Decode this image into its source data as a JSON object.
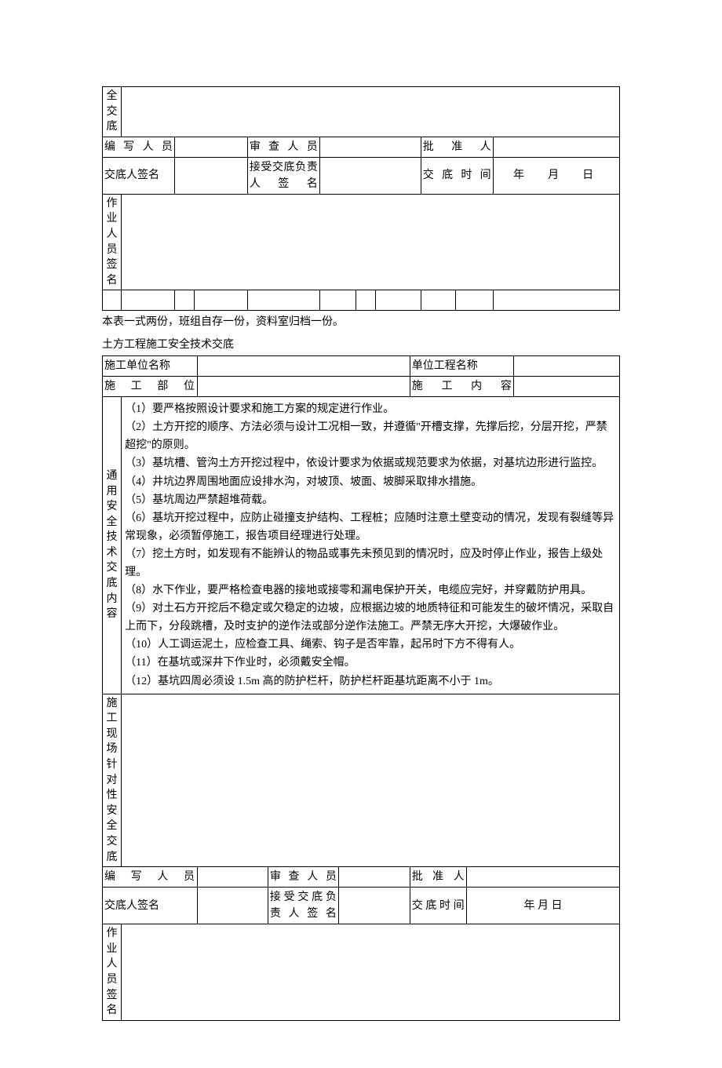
{
  "table1": {
    "row_label_1": "全交底",
    "r2": {
      "c1": "编写人员",
      "c2": "审查人员",
      "c3": "批准人"
    },
    "r3": {
      "c1": "交底人签名",
      "c2": "接受交底负责人签名",
      "c3": "交底时间",
      "date": "年　月　日"
    },
    "r4": {
      "c1": "作业人员签名"
    }
  },
  "note": "本表一式两份，班组自存一份，资料室归档一份。",
  "title": "土方工程施工安全技术交底",
  "table2": {
    "r1": {
      "c1": "施工单位名称",
      "c2": "单位工程名称"
    },
    "r2": {
      "c1": "施工部位",
      "c2": "施工内容"
    },
    "side1": "通用安全技术交底内容",
    "content": [
      "（1）要严格按照设计要求和施工方案的规定进行作业。",
      "（2）土方开挖的顺序、方法必须与设计工况相一致，并遵循\"开槽支撑，先撑后挖，分层开挖，严禁超挖\"的原则。",
      "（3）基坑槽、管沟土方开挖过程中，依设计要求为依据或规范要求为依据，对基坑边形进行监控。",
      "（4）井坑边界周围地面应设排水沟，对坡顶、坡面、坡脚采取排水措施。",
      "（5）基坑周边严禁超堆荷载。",
      "（6）基坑开挖过程中，应防止碰撞支护结构、工程桩；应随时注意土壁变动的情况，发现有裂缝等异常现象，必须暂停施工，报告项目经理进行处理。",
      "（7）挖土方时，如发现有不能辨认的物品或事先未预见到的情况时，应及时停止作业，报告上级处理。",
      "（8）水下作业，要严格检查电器的接地或接零和漏电保护开关，电缆应完好，并穿戴防护用具。",
      "（9）对土石方开挖后不稳定或欠稳定的边坡，应根据边坡的地质特征和可能发生的破坏情况，采取自上而下，分段跳槽，及时支护的逆作法或部分逆作法施工。严禁无序大开挖，大爆破作业。",
      "（10）人工调运泥土，应检查工具、绳索、钩子是否牢靠，起吊时下方不得有人。",
      "（11）在基坑或深井下作业时，必须戴安全帽。",
      "（12）基坑四周必须设 1.5m 高的防护栏杆，防护栏杆距基坑距离不小于 1m。"
    ],
    "side2": "施工现场针对性安全交底",
    "r_ed": {
      "c1": "编写人员",
      "c2": "审查人员",
      "c3": "批准人"
    },
    "r_sign": {
      "c1": "交底人签名",
      "c2": "接受交底负责人签名",
      "c3": "交底时间",
      "date": "年  月  日"
    },
    "r_work": {
      "c1": "作业人员签名"
    }
  }
}
